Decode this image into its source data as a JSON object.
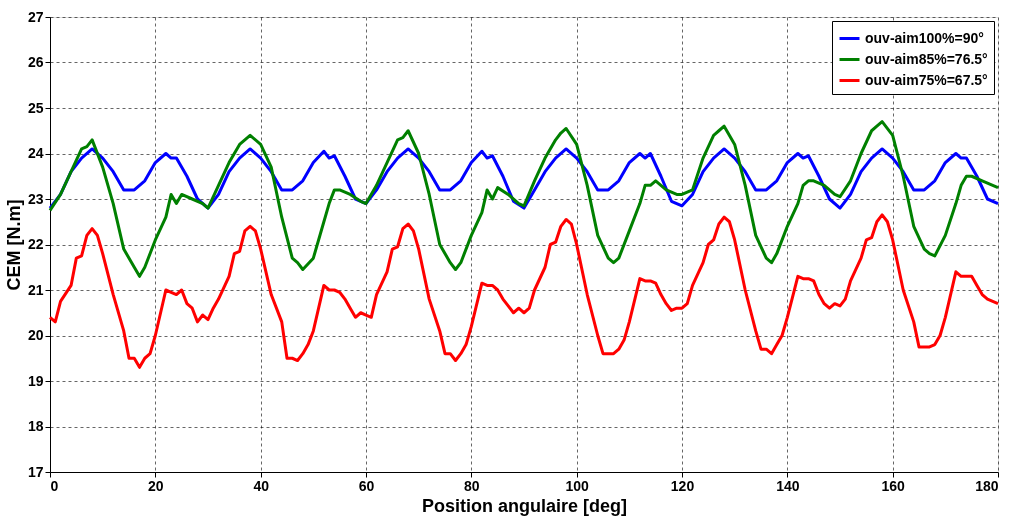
{
  "chart_data": {
    "type": "line",
    "xlabel": "Position angulaire [deg]",
    "ylabel": "CEM [N.m]",
    "xlim": [
      0,
      180
    ],
    "xticks": [
      0,
      20,
      40,
      60,
      80,
      100,
      120,
      140,
      160,
      180
    ],
    "ylim": [
      17,
      27
    ],
    "yticks": [
      17,
      18,
      19,
      20,
      21,
      22,
      23,
      24,
      25,
      26,
      27
    ],
    "grid": true,
    "legend": "top right",
    "marker": "none",
    "line_style": "solid",
    "series": [
      {
        "name": "ouv-aim100%=90°",
        "color": "#0000ff",
        "x": [
          0,
          2,
          4,
          6,
          8,
          10,
          12,
          14,
          16,
          18,
          20,
          22,
          23,
          24,
          26,
          28,
          30,
          32,
          34,
          36,
          38,
          40,
          42,
          44,
          46,
          48,
          50,
          52,
          53,
          54,
          56,
          58,
          60,
          62,
          64,
          66,
          68,
          70,
          72,
          74,
          76,
          78,
          80,
          82,
          83,
          84,
          86,
          88,
          90,
          92,
          94,
          96,
          98,
          100,
          102,
          104,
          106,
          108,
          110,
          112,
          113,
          114,
          116,
          118,
          120,
          122,
          124,
          126,
          128,
          130,
          132,
          134,
          136,
          138,
          140,
          142,
          143,
          144,
          146,
          148,
          150,
          152,
          154,
          156,
          158,
          160,
          162,
          164,
          166,
          168,
          170,
          172,
          173,
          174,
          176,
          178,
          180
        ],
        "values": [
          22.8,
          23.1,
          23.6,
          23.9,
          24.1,
          23.9,
          23.6,
          23.2,
          23.2,
          23.4,
          23.8,
          24.0,
          23.9,
          23.9,
          23.5,
          23.0,
          22.8,
          23.1,
          23.6,
          23.9,
          24.1,
          23.9,
          23.6,
          23.2,
          23.2,
          23.4,
          23.8,
          24.05,
          23.9,
          23.95,
          23.5,
          23.0,
          22.9,
          23.2,
          23.6,
          23.9,
          24.1,
          23.9,
          23.6,
          23.2,
          23.2,
          23.4,
          23.8,
          24.05,
          23.9,
          23.95,
          23.5,
          22.95,
          22.8,
          23.2,
          23.6,
          23.9,
          24.1,
          23.9,
          23.6,
          23.2,
          23.2,
          23.4,
          23.8,
          24.0,
          23.9,
          24.0,
          23.5,
          22.95,
          22.85,
          23.1,
          23.6,
          23.9,
          24.1,
          23.9,
          23.6,
          23.2,
          23.2,
          23.4,
          23.8,
          24.0,
          23.9,
          23.95,
          23.5,
          23.0,
          22.8,
          23.1,
          23.6,
          23.9,
          24.1,
          23.9,
          23.6,
          23.2,
          23.2,
          23.4,
          23.8,
          24.0,
          23.9,
          23.9,
          23.5,
          23.0,
          22.9
        ]
      },
      {
        "name": "ouv-aim85%=76.5°",
        "color": "#008000",
        "x": [
          0,
          2,
          4,
          6,
          7,
          8,
          10,
          12,
          14,
          16,
          17,
          18,
          20,
          22,
          23,
          24,
          25,
          27,
          29,
          30,
          32,
          34,
          36,
          37,
          38,
          40,
          42,
          44,
          46,
          47,
          48,
          50,
          52,
          53,
          54,
          55,
          57,
          59,
          60,
          62,
          64,
          66,
          67,
          68,
          70,
          72,
          74,
          76,
          77,
          78,
          80,
          82,
          83,
          84,
          85,
          87,
          89,
          90,
          92,
          94,
          96,
          97,
          98,
          100,
          102,
          104,
          106,
          107,
          108,
          110,
          112,
          113,
          114,
          115,
          117,
          119,
          120,
          122,
          124,
          126,
          127,
          128,
          130,
          132,
          134,
          136,
          137,
          138,
          140,
          142,
          143,
          144,
          145,
          147,
          149,
          150,
          152,
          154,
          156,
          157,
          158,
          160,
          162,
          164,
          166,
          167,
          168,
          170,
          172,
          173,
          174,
          175,
          177,
          179,
          180
        ],
        "values": [
          22.75,
          23.1,
          23.6,
          24.1,
          24.15,
          24.3,
          23.7,
          22.9,
          21.9,
          21.5,
          21.3,
          21.5,
          22.1,
          22.6,
          23.1,
          22.9,
          23.1,
          23.0,
          22.9,
          22.8,
          23.3,
          23.8,
          24.2,
          24.3,
          24.4,
          24.2,
          23.7,
          22.6,
          21.7,
          21.6,
          21.45,
          21.7,
          22.5,
          22.9,
          23.2,
          23.2,
          23.1,
          22.95,
          22.9,
          23.3,
          23.8,
          24.3,
          24.35,
          24.5,
          24.0,
          23.1,
          22.0,
          21.6,
          21.45,
          21.6,
          22.2,
          22.7,
          23.2,
          23.0,
          23.25,
          23.1,
          22.9,
          22.85,
          23.4,
          23.9,
          24.3,
          24.45,
          24.55,
          24.2,
          23.3,
          22.2,
          21.7,
          21.6,
          21.7,
          22.3,
          22.9,
          23.3,
          23.3,
          23.4,
          23.2,
          23.1,
          23.1,
          23.2,
          23.9,
          24.4,
          24.5,
          24.6,
          24.2,
          23.3,
          22.2,
          21.7,
          21.6,
          21.8,
          22.4,
          22.9,
          23.3,
          23.4,
          23.4,
          23.3,
          23.1,
          23.05,
          23.4,
          24.0,
          24.5,
          24.6,
          24.7,
          24.4,
          23.5,
          22.4,
          21.9,
          21.8,
          21.75,
          22.2,
          22.9,
          23.3,
          23.5,
          23.5,
          23.4,
          23.3,
          23.25
        ]
      },
      {
        "name": "ouv-aim75%=67.5°",
        "color": "#ff0000",
        "x": [
          0,
          1,
          2,
          4,
          5,
          6,
          7,
          8,
          9,
          10,
          12,
          14,
          15,
          16,
          17,
          18,
          19,
          20,
          22,
          23,
          24,
          25,
          26,
          27,
          28,
          29,
          30,
          31,
          32,
          34,
          35,
          36,
          37,
          38,
          39,
          40,
          42,
          44,
          45,
          46,
          47,
          48,
          49,
          50,
          52,
          53,
          54,
          55,
          56,
          57,
          58,
          59,
          60,
          61,
          62,
          64,
          65,
          66,
          67,
          68,
          69,
          70,
          72,
          74,
          75,
          76,
          77,
          78,
          79,
          80,
          82,
          83,
          84,
          85,
          86,
          87,
          88,
          89,
          90,
          91,
          92,
          94,
          95,
          96,
          97,
          98,
          99,
          100,
          102,
          104,
          105,
          106,
          107,
          108,
          109,
          110,
          112,
          113,
          114,
          115,
          116,
          117,
          118,
          119,
          120,
          121,
          122,
          124,
          125,
          126,
          127,
          128,
          129,
          130,
          132,
          134,
          135,
          136,
          137,
          138,
          139,
          140,
          142,
          143,
          144,
          145,
          146,
          147,
          148,
          149,
          150,
          151,
          152,
          154,
          155,
          156,
          157,
          158,
          159,
          160,
          162,
          164,
          165,
          166,
          167,
          168,
          169,
          170,
          172,
          173,
          174,
          175,
          176,
          177,
          178,
          179,
          180
        ],
        "values": [
          20.4,
          20.3,
          20.75,
          21.1,
          21.7,
          21.75,
          22.2,
          22.35,
          22.2,
          21.8,
          20.9,
          20.1,
          19.5,
          19.5,
          19.3,
          19.5,
          19.6,
          20.0,
          21.0,
          20.95,
          20.9,
          21.0,
          20.7,
          20.6,
          20.3,
          20.45,
          20.35,
          20.6,
          20.8,
          21.3,
          21.8,
          21.85,
          22.3,
          22.4,
          22.3,
          21.9,
          20.9,
          20.3,
          19.5,
          19.5,
          19.45,
          19.6,
          19.8,
          20.1,
          21.1,
          21.0,
          21.0,
          20.95,
          20.8,
          20.6,
          20.4,
          20.5,
          20.45,
          20.4,
          20.9,
          21.4,
          21.9,
          21.95,
          22.35,
          22.45,
          22.3,
          21.9,
          20.8,
          20.1,
          19.6,
          19.6,
          19.45,
          19.6,
          19.8,
          20.2,
          21.15,
          21.1,
          21.1,
          21.0,
          20.8,
          20.65,
          20.5,
          20.6,
          20.5,
          20.6,
          21.0,
          21.5,
          22.0,
          22.05,
          22.4,
          22.55,
          22.45,
          22.0,
          20.9,
          20.0,
          19.6,
          19.6,
          19.6,
          19.7,
          19.9,
          20.3,
          21.25,
          21.2,
          21.2,
          21.15,
          20.9,
          20.7,
          20.55,
          20.6,
          20.6,
          20.7,
          21.1,
          21.6,
          22.0,
          22.1,
          22.45,
          22.6,
          22.5,
          22.1,
          21.0,
          20.1,
          19.7,
          19.7,
          19.6,
          19.8,
          20.0,
          20.4,
          21.3,
          21.25,
          21.25,
          21.2,
          20.9,
          20.7,
          20.6,
          20.7,
          20.65,
          20.8,
          21.2,
          21.7,
          22.1,
          22.15,
          22.5,
          22.65,
          22.5,
          22.1,
          21.0,
          20.3,
          19.75,
          19.75,
          19.75,
          19.8,
          20.0,
          20.4,
          21.4,
          21.3,
          21.3,
          21.3,
          21.1,
          20.9,
          20.8,
          20.75,
          20.7
        ]
      }
    ]
  }
}
